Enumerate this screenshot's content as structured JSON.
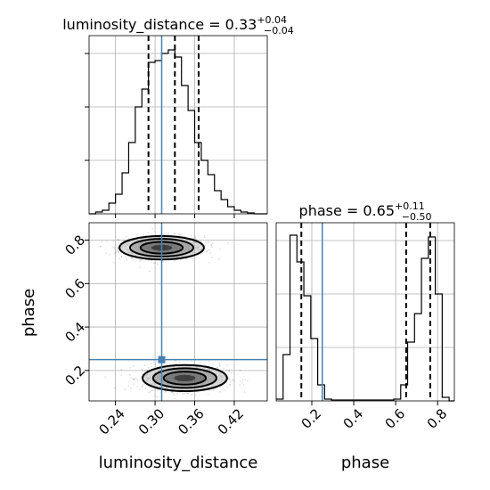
{
  "figure": {
    "axis_color": "#000000",
    "grid_color": "#b0b0b0",
    "truth_color": "#4682b4",
    "density_color": "#000000"
  },
  "chart_data": [
    {
      "panel": "luminosity_distance-marginal",
      "type": "histogram",
      "title_base": "luminosity_distance = 0.33",
      "title_sup": "+0.04",
      "title_sub": "−0.04",
      "xlim": [
        0.2,
        0.47
      ],
      "ylim": [
        0,
        1.0
      ],
      "grid": true,
      "y_ticks": [
        0.3,
        0.6,
        0.9
      ],
      "bin_edges": [
        0.2,
        0.21,
        0.22,
        0.23,
        0.24,
        0.25,
        0.26,
        0.27,
        0.28,
        0.29,
        0.3,
        0.31,
        0.32,
        0.33,
        0.34,
        0.35,
        0.36,
        0.37,
        0.38,
        0.39,
        0.4,
        0.41,
        0.42,
        0.43,
        0.44,
        0.45,
        0.46,
        0.47
      ],
      "counts": [
        0,
        0.01,
        0.02,
        0.06,
        0.11,
        0.23,
        0.4,
        0.6,
        0.7,
        0.85,
        0.86,
        0.9,
        0.92,
        0.88,
        0.72,
        0.58,
        0.4,
        0.3,
        0.22,
        0.13,
        0.08,
        0.04,
        0.02,
        0.01,
        0.005,
        0,
        0
      ],
      "quantile_lines": [
        0.29,
        0.33,
        0.366
      ],
      "truth": 0.31
    },
    {
      "panel": "phase-marginal",
      "type": "histogram",
      "title_base": "phase = 0.65",
      "title_sup": "+0.11",
      "title_sub": "−0.50",
      "xlim": [
        0.03,
        0.88
      ],
      "ylim": [
        0,
        1.0
      ],
      "grid": true,
      "bin_edges": [
        0.03,
        0.063,
        0.096,
        0.129,
        0.162,
        0.195,
        0.228,
        0.261,
        0.294,
        0.327,
        0.36,
        0.393,
        0.426,
        0.459,
        0.492,
        0.525,
        0.558,
        0.591,
        0.624,
        0.657,
        0.69,
        0.723,
        0.756,
        0.789,
        0.822,
        0.855,
        0.88
      ],
      "counts": [
        0.01,
        0.26,
        0.93,
        0.78,
        0.59,
        0.35,
        0.09,
        0.01,
        0.005,
        0.005,
        0.005,
        0.005,
        0.005,
        0.005,
        0.005,
        0.005,
        0.005,
        0.01,
        0.09,
        0.33,
        0.49,
        0.8,
        0.92,
        0.6,
        0.02,
        0
      ],
      "quantile_lines": [
        0.15,
        0.65,
        0.765
      ],
      "truth": 0.25
    },
    {
      "panel": "joint",
      "type": "scatter-contour",
      "xlabel": "luminosity_distance",
      "ylabel": "phase",
      "xlim": [
        0.2,
        0.47
      ],
      "ylim": [
        0.06,
        0.88
      ],
      "grid": true,
      "x_ticks": [
        0.24,
        0.3,
        0.36,
        0.42
      ],
      "x_tick_labels": [
        "0.24",
        "0.30",
        "0.36",
        "0.42"
      ],
      "y_ticks": [
        0.2,
        0.4,
        0.6,
        0.8
      ],
      "y_tick_labels": [
        "0.2",
        "0.4",
        "0.6",
        "0.8"
      ],
      "modes": [
        {
          "center": [
            0.31,
            0.765
          ],
          "sigma": [
            0.032,
            0.027
          ],
          "weight": 0.5
        },
        {
          "center": [
            0.345,
            0.165
          ],
          "sigma": [
            0.032,
            0.03
          ],
          "weight": 0.5
        }
      ],
      "contour_levels": [
        {
          "name": "inner",
          "radius": 1.0
        },
        {
          "name": "middle",
          "radius": 1.5
        },
        {
          "name": "outer",
          "radius": 2.0
        }
      ],
      "truth": {
        "x": 0.31,
        "y": 0.25
      }
    },
    {
      "panel": "phase-axis",
      "type": "axis",
      "xlabel": "phase",
      "x_ticks": [
        0.2,
        0.4,
        0.6,
        0.8
      ],
      "x_tick_labels": [
        "0.2",
        "0.4",
        "0.6",
        "0.8"
      ]
    }
  ]
}
